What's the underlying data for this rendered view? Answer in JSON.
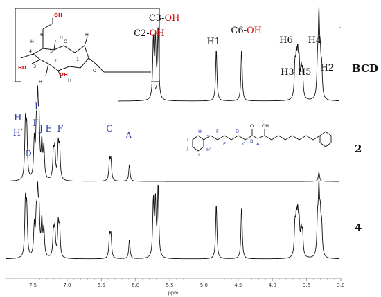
{
  "chart_data": {
    "type": "line",
    "xlabel": "ppm",
    "xlim": [
      3.0,
      7.9
    ],
    "x_reversed": true,
    "ticks": [
      "7.5",
      "7.0",
      "6.5",
      "6.0",
      "5.5",
      "5.0",
      "4.5",
      "4.0",
      "3.5",
      "3.0"
    ],
    "tick_values": [
      7.5,
      7.0,
      6.5,
      6.0,
      5.5,
      5.0,
      4.5,
      4.0,
      3.5,
      3.0
    ],
    "series": [
      {
        "name": "BCD",
        "peaks": [
          {
            "x": 5.74,
            "h": 0.78
          },
          {
            "x": 5.71,
            "h": 0.78
          },
          {
            "x": 5.67,
            "h": 0.95
          },
          {
            "x": 4.82,
            "h": 0.7
          },
          {
            "x": 4.45,
            "h": 0.7
          },
          {
            "x": 3.67,
            "h": 0.42
          },
          {
            "x": 3.65,
            "h": 0.48
          },
          {
            "x": 3.63,
            "h": 0.5
          },
          {
            "x": 3.61,
            "h": 0.44
          },
          {
            "x": 3.58,
            "h": 0.36
          },
          {
            "x": 3.56,
            "h": 0.34
          },
          {
            "x": 3.34,
            "h": 0.42
          },
          {
            "x": 3.32,
            "h": 1.05
          },
          {
            "x": 3.3,
            "h": 0.45
          },
          {
            "x": 3.28,
            "h": 0.38
          }
        ]
      },
      {
        "name": "2",
        "peaks": [
          {
            "x": 7.61,
            "h": 0.74
          },
          {
            "x": 7.59,
            "h": 0.62
          },
          {
            "x": 7.48,
            "h": 0.48
          },
          {
            "x": 7.45,
            "h": 0.55
          },
          {
            "x": 7.43,
            "h": 0.9
          },
          {
            "x": 7.41,
            "h": 0.66
          },
          {
            "x": 7.37,
            "h": 0.46
          },
          {
            "x": 7.34,
            "h": 0.4
          },
          {
            "x": 7.2,
            "h": 0.35
          },
          {
            "x": 7.18,
            "h": 0.38
          },
          {
            "x": 7.13,
            "h": 0.44
          },
          {
            "x": 7.11,
            "h": 0.4
          },
          {
            "x": 6.38,
            "h": 0.26
          },
          {
            "x": 6.36,
            "h": 0.26
          },
          {
            "x": 6.09,
            "h": 0.22
          },
          {
            "x": 3.32,
            "h": 0.12
          }
        ]
      },
      {
        "name": "4",
        "peaks": [
          {
            "x": 7.61,
            "h": 0.74
          },
          {
            "x": 7.59,
            "h": 0.62
          },
          {
            "x": 7.48,
            "h": 0.4
          },
          {
            "x": 7.45,
            "h": 0.48
          },
          {
            "x": 7.43,
            "h": 0.74
          },
          {
            "x": 7.41,
            "h": 0.56
          },
          {
            "x": 7.37,
            "h": 0.48
          },
          {
            "x": 7.34,
            "h": 0.36
          },
          {
            "x": 7.2,
            "h": 0.34
          },
          {
            "x": 7.18,
            "h": 0.36
          },
          {
            "x": 7.13,
            "h": 0.44
          },
          {
            "x": 7.11,
            "h": 0.38
          },
          {
            "x": 6.38,
            "h": 0.3
          },
          {
            "x": 6.36,
            "h": 0.3
          },
          {
            "x": 6.09,
            "h": 0.26
          },
          {
            "x": 5.74,
            "h": 0.74
          },
          {
            "x": 5.71,
            "h": 0.74
          },
          {
            "x": 5.67,
            "h": 0.96
          },
          {
            "x": 4.82,
            "h": 0.74
          },
          {
            "x": 4.45,
            "h": 0.7
          },
          {
            "x": 3.67,
            "h": 0.4
          },
          {
            "x": 3.65,
            "h": 0.46
          },
          {
            "x": 3.63,
            "h": 0.48
          },
          {
            "x": 3.61,
            "h": 0.42
          },
          {
            "x": 3.58,
            "h": 0.32
          },
          {
            "x": 3.56,
            "h": 0.3
          },
          {
            "x": 3.34,
            "h": 0.44
          },
          {
            "x": 3.32,
            "h": 0.84
          },
          {
            "x": 3.3,
            "h": 0.46
          },
          {
            "x": 3.28,
            "h": 0.38
          }
        ]
      }
    ],
    "annotations": [
      {
        "text": "C2-",
        "oh": "OH",
        "trace": 0,
        "x": 5.8
      },
      {
        "text": "C3-",
        "oh": "OH",
        "trace": 0,
        "x": 5.58
      },
      {
        "text": "H1",
        "trace": 0,
        "x": 4.86
      },
      {
        "text": "C6-",
        "oh": "OH",
        "trace": 0,
        "x": 4.38
      },
      {
        "text": "H6",
        "trace": 0,
        "x": 3.8
      },
      {
        "text": "H3",
        "trace": 0,
        "x": 3.78
      },
      {
        "text": "H5",
        "trace": 0,
        "x": 3.53
      },
      {
        "text": "H4",
        "trace": 0,
        "x": 3.38
      },
      {
        "text": "H2",
        "trace": 0,
        "x": 3.2
      },
      {
        "text": "H",
        "trace": 1,
        "x": 7.72
      },
      {
        "text": "H′",
        "trace": 1,
        "x": 7.72
      },
      {
        "text": "I",
        "trace": 1,
        "x": 7.45
      },
      {
        "text": "I′",
        "trace": 1,
        "x": 7.46
      },
      {
        "text": "D",
        "trace": 1,
        "x": 7.57
      },
      {
        "text": "J",
        "trace": 1,
        "x": 7.38
      },
      {
        "text": "E",
        "trace": 1,
        "x": 7.27
      },
      {
        "text": "F",
        "trace": 1,
        "x": 7.1
      },
      {
        "text": "C",
        "trace": 1,
        "x": 6.38
      },
      {
        "text": "A",
        "trace": 1,
        "x": 6.1
      }
    ]
  },
  "structure_bcd": {
    "name": "beta-cyclodextrin",
    "atoms": [
      "OH",
      "6",
      "4",
      "5",
      "O",
      "1",
      "HO",
      "3",
      "2",
      "OH",
      "H",
      "H",
      "H",
      "H",
      "O",
      "H"
    ],
    "subscript": "7"
  },
  "structure_curcuminoid": {
    "labels": [
      "H",
      "G",
      "I",
      "J",
      "I′",
      "H′",
      "F",
      "E",
      "D",
      "C",
      "B",
      "A",
      "O",
      "OH"
    ]
  }
}
